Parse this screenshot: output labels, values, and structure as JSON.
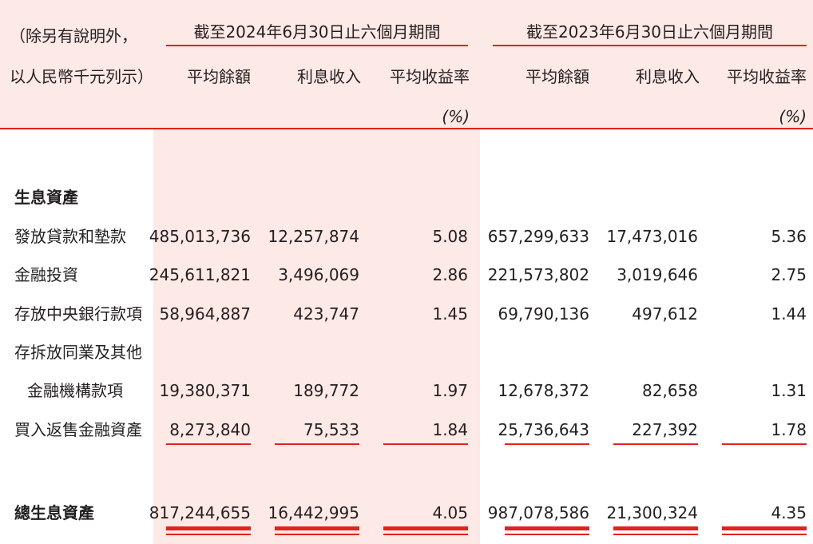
{
  "header": {
    "unit_note_line1": "（除另有說明外，",
    "unit_note_line2": "以人民幣千元列示）",
    "period_2024": "截至2024年6月30日止六個月期間",
    "period_2023": "截至2023年6月30日止六個月期間",
    "col_avg_balance": "平均餘額",
    "col_interest_income": "利息收入",
    "col_avg_yield": "平均收益率",
    "col_pct": "(%)"
  },
  "section_title": "生息資產",
  "rows": [
    {
      "label": "發放貸款和墊款",
      "v2024_balance": "485,013,736",
      "v2024_income": "12,257,874",
      "v2024_yield": "5.08",
      "v2023_balance": "657,299,633",
      "v2023_income": "17,473,016",
      "v2023_yield": "5.36"
    },
    {
      "label": "金融投資",
      "v2024_balance": "245,611,821",
      "v2024_income": "3,496,069",
      "v2024_yield": "2.86",
      "v2023_balance": "221,573,802",
      "v2023_income": "3,019,646",
      "v2023_yield": "2.75"
    },
    {
      "label": "存放中央銀行款項",
      "v2024_balance": "58,964,887",
      "v2024_income": "423,747",
      "v2024_yield": "1.45",
      "v2023_balance": "69,790,136",
      "v2023_income": "497,612",
      "v2023_yield": "1.44"
    },
    {
      "label": "存拆放同業及其他",
      "label_cont": "金融機構款項",
      "v2024_balance": "19,380,371",
      "v2024_income": "189,772",
      "v2024_yield": "1.97",
      "v2023_balance": "12,678,372",
      "v2023_income": "82,658",
      "v2023_yield": "1.31"
    },
    {
      "label": "買入返售金融資產",
      "v2024_balance": "8,273,840",
      "v2024_income": "75,533",
      "v2024_yield": "1.84",
      "v2023_balance": "25,736,643",
      "v2023_income": "227,392",
      "v2023_yield": "1.78"
    }
  ],
  "total": {
    "label": "總生息資產",
    "v2024_balance": "817,244,655",
    "v2024_income": "16,442,995",
    "v2024_yield": "4.05",
    "v2023_balance": "987,078,586",
    "v2023_income": "21,300,324",
    "v2023_yield": "4.35"
  },
  "colors": {
    "accent_red": "#e2231a",
    "highlight_pink": "#fde9e6",
    "text": "#231f20"
  }
}
